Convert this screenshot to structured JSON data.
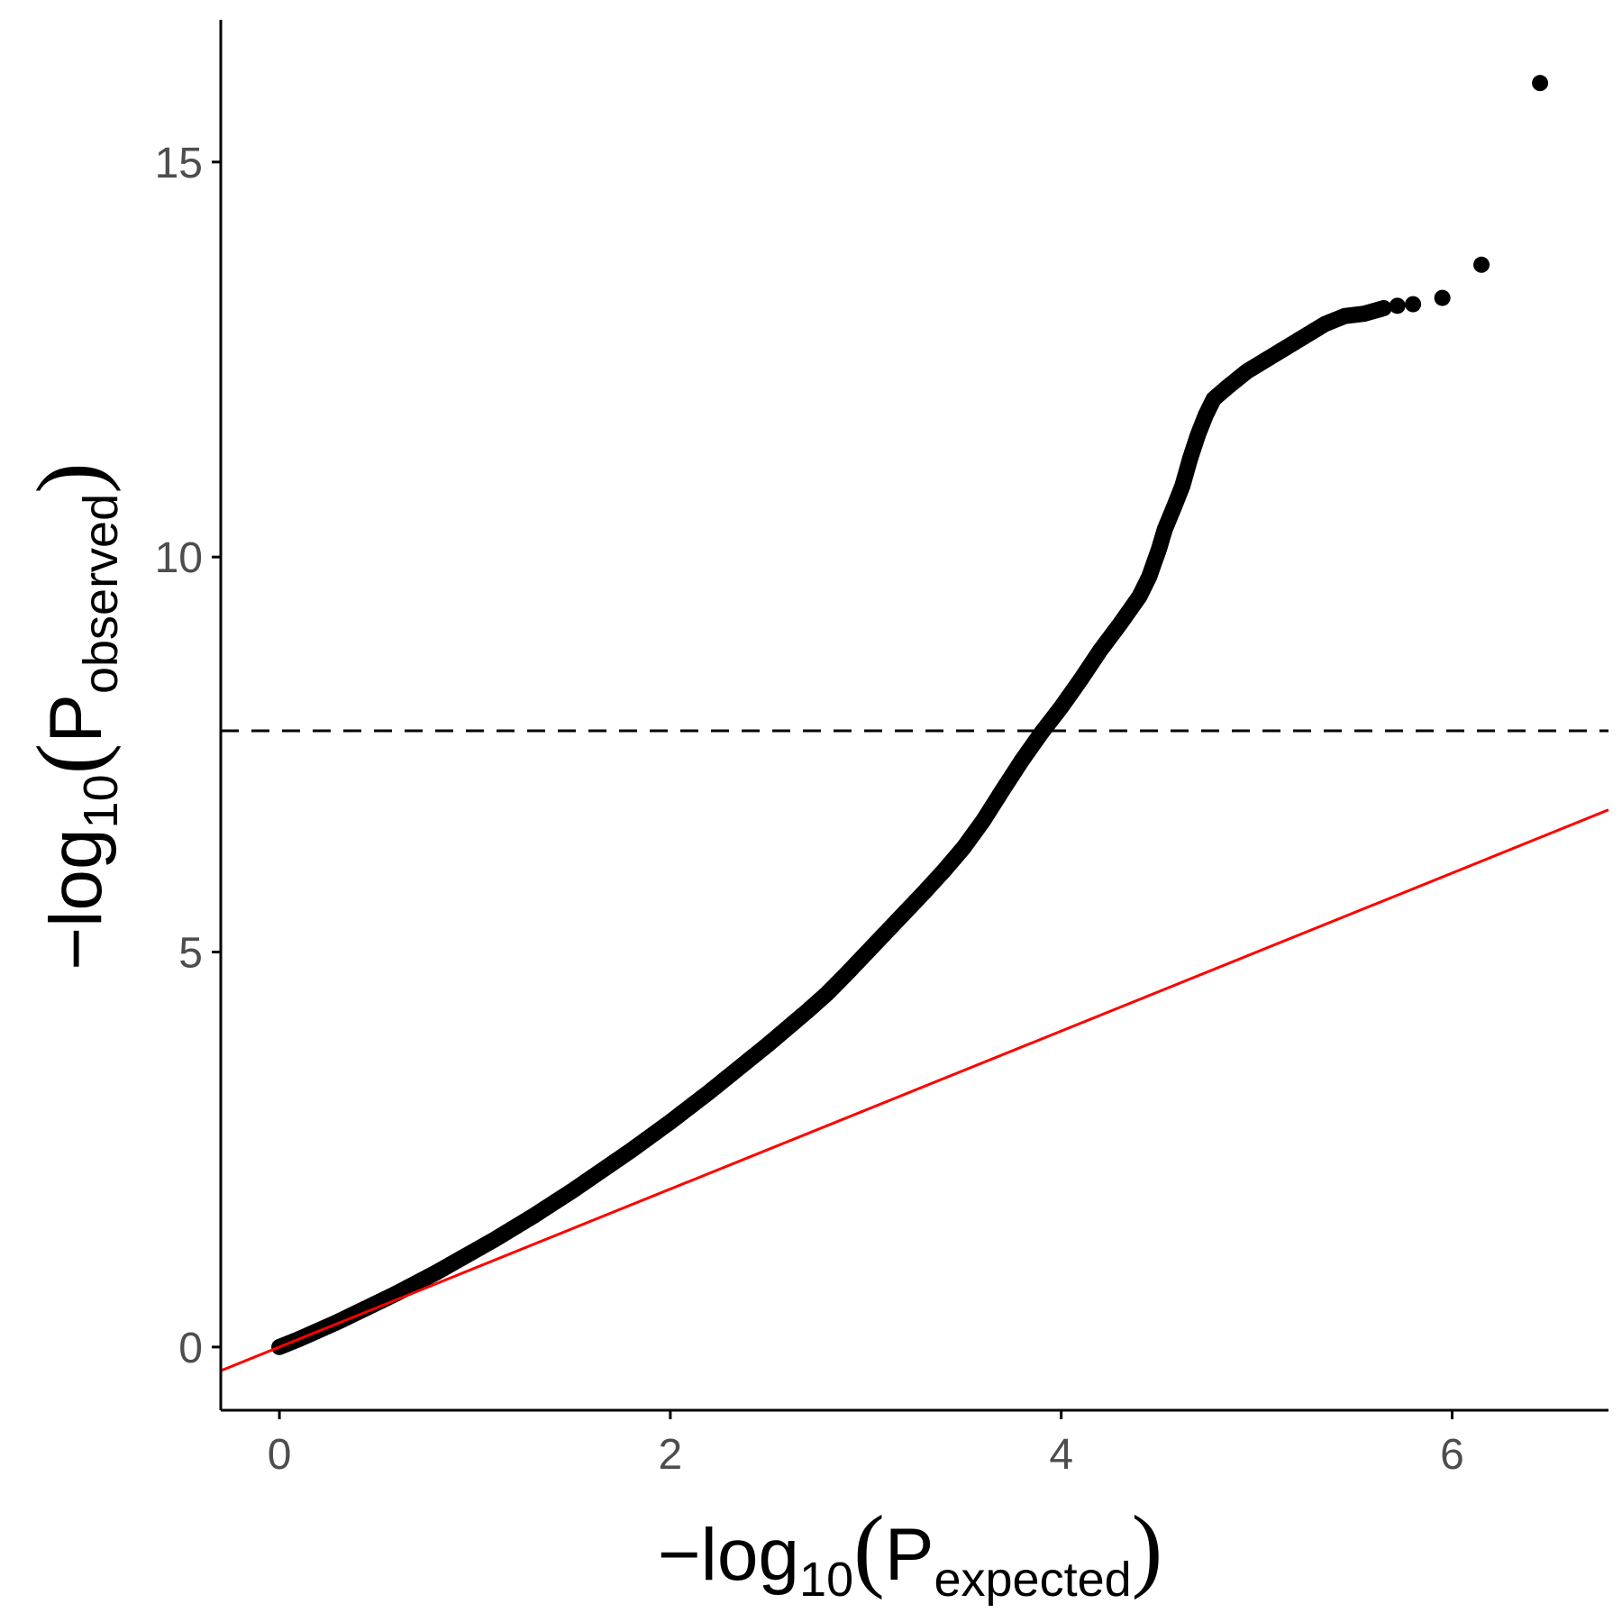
{
  "chart_data": {
    "type": "scatter",
    "title": "",
    "xlabel": {
      "prefix": "−log",
      "subscript": "10",
      "open": "(",
      "symbol": "P",
      "symbol_subscript": "expected",
      "close": ")"
    },
    "ylabel": {
      "prefix": "−log",
      "subscript": "10",
      "open": "(",
      "symbol": "P",
      "symbol_subscript": "observed",
      "close": ")"
    },
    "xlim": [
      -0.3,
      6.8
    ],
    "ylim": [
      -0.8,
      16.8
    ],
    "x_ticks": [
      {
        "value": 0,
        "label": "0"
      },
      {
        "value": 2,
        "label": "2"
      },
      {
        "value": 4,
        "label": "4"
      },
      {
        "value": 6,
        "label": "6"
      }
    ],
    "y_ticks": [
      {
        "value": 0,
        "label": "0"
      },
      {
        "value": 5,
        "label": "5"
      },
      {
        "value": 10,
        "label": "10"
      },
      {
        "value": 15,
        "label": "15"
      }
    ],
    "grid": false,
    "legend": "none",
    "reference_line": {
      "intercept": 0,
      "slope": 1,
      "color": "#ff0000"
    },
    "threshold_line": {
      "y": 7.8,
      "style": "dashed",
      "color": "#000000"
    },
    "point_color": "#000000",
    "series": [
      {
        "points": [
          [
            0.0,
            0.0
          ],
          [
            0.1,
            0.1
          ],
          [
            0.2,
            0.21
          ],
          [
            0.3,
            0.32
          ],
          [
            0.4,
            0.44
          ],
          [
            0.5,
            0.56
          ],
          [
            0.6,
            0.68
          ],
          [
            0.7,
            0.81
          ],
          [
            0.8,
            0.94
          ],
          [
            0.9,
            1.08
          ],
          [
            1.0,
            1.22
          ],
          [
            1.1,
            1.36
          ],
          [
            1.2,
            1.51
          ],
          [
            1.3,
            1.66
          ],
          [
            1.4,
            1.82
          ],
          [
            1.5,
            1.98
          ],
          [
            1.6,
            2.15
          ],
          [
            1.7,
            2.32
          ],
          [
            1.8,
            2.49
          ],
          [
            1.9,
            2.67
          ],
          [
            2.0,
            2.85
          ],
          [
            2.1,
            3.04
          ],
          [
            2.2,
            3.23
          ],
          [
            2.3,
            3.43
          ],
          [
            2.4,
            3.63
          ],
          [
            2.5,
            3.83
          ],
          [
            2.6,
            4.04
          ],
          [
            2.7,
            4.25
          ],
          [
            2.8,
            4.47
          ],
          [
            2.9,
            4.72
          ],
          [
            3.0,
            4.98
          ],
          [
            3.1,
            5.24
          ],
          [
            3.2,
            5.5
          ],
          [
            3.3,
            5.76
          ],
          [
            3.4,
            6.03
          ],
          [
            3.5,
            6.32
          ],
          [
            3.6,
            6.66
          ],
          [
            3.7,
            7.05
          ],
          [
            3.8,
            7.43
          ],
          [
            3.9,
            7.78
          ],
          [
            4.0,
            8.1
          ],
          [
            4.1,
            8.45
          ],
          [
            4.2,
            8.82
          ],
          [
            4.3,
            9.15
          ],
          [
            4.4,
            9.5
          ],
          [
            4.45,
            9.75
          ],
          [
            4.5,
            10.1
          ],
          [
            4.53,
            10.35
          ],
          [
            4.58,
            10.65
          ],
          [
            4.62,
            10.9
          ],
          [
            4.66,
            11.25
          ],
          [
            4.7,
            11.55
          ],
          [
            4.74,
            11.8
          ],
          [
            4.78,
            12.0
          ],
          [
            4.85,
            12.15
          ],
          [
            4.95,
            12.35
          ],
          [
            5.05,
            12.5
          ],
          [
            5.15,
            12.65
          ],
          [
            5.25,
            12.8
          ],
          [
            5.35,
            12.95
          ],
          [
            5.45,
            13.05
          ],
          [
            5.55,
            13.08
          ],
          [
            5.65,
            13.15
          ],
          [
            5.72,
            13.18
          ],
          [
            5.8,
            13.2
          ],
          [
            5.95,
            13.28
          ],
          [
            6.15,
            13.7
          ],
          [
            6.45,
            16.0
          ]
        ]
      }
    ]
  }
}
